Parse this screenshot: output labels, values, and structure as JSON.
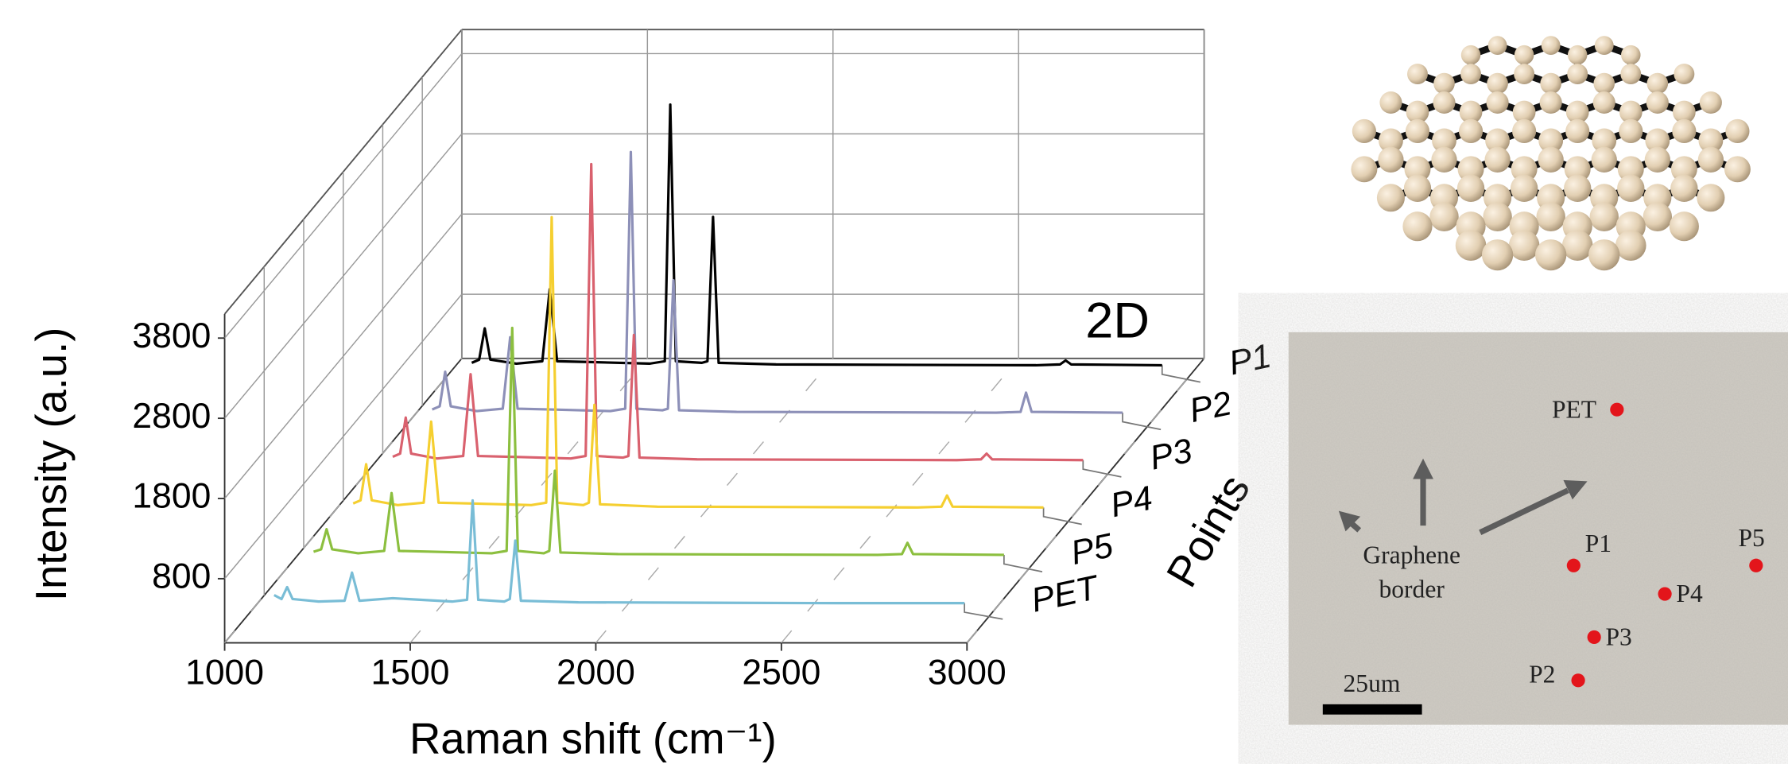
{
  "chart_data": {
    "type": "waterfall",
    "annotation": "2D",
    "x_label": "Raman shift (cm⁻¹)",
    "y_label": "Intensity (a.u.)",
    "z_label": "Points",
    "xlim": [
      1000,
      3000
    ],
    "xticks": [
      1000,
      1500,
      2000,
      2500,
      3000
    ],
    "ylim": [
      0,
      4100
    ],
    "yticks": [
      800,
      1800,
      2800,
      3800
    ],
    "grid": true,
    "x": [
      1080,
      1100,
      1115,
      1130,
      1200,
      1270,
      1290,
      1310,
      1400,
      1560,
      1600,
      1615,
      1630,
      1700,
      1715,
      1730,
      1745,
      1900,
      2600,
      2665,
      2680,
      2695,
      2940
    ],
    "series": [
      {
        "name": "PET",
        "color": "#79bdd6",
        "values": [
          300,
          250,
          400,
          250,
          220,
          230,
          580,
          230,
          260,
          220,
          240,
          1480,
          240,
          220,
          250,
          980,
          230,
          210,
          200,
          200,
          200,
          200,
          200
        ]
      },
      {
        "name": "P5",
        "color": "#8cbf3f",
        "values": [
          250,
          280,
          530,
          280,
          230,
          260,
          980,
          260,
          250,
          230,
          260,
          3040,
          260,
          230,
          260,
          1260,
          240,
          220,
          210,
          220,
          360,
          220,
          210
        ]
      },
      {
        "name": "P4",
        "color": "#f5cf30",
        "values": [
          260,
          300,
          750,
          300,
          240,
          270,
          1280,
          270,
          260,
          240,
          270,
          3830,
          270,
          240,
          270,
          1490,
          250,
          220,
          210,
          220,
          360,
          220,
          210
        ]
      },
      {
        "name": "P3",
        "color": "#d9616e",
        "values": [
          250,
          290,
          740,
          290,
          230,
          260,
          1280,
          260,
          250,
          230,
          260,
          3900,
          260,
          240,
          260,
          1770,
          240,
          220,
          210,
          220,
          290,
          220,
          210
        ]
      },
      {
        "name": "P2",
        "color": "#8d90b8",
        "values": [
          250,
          290,
          720,
          290,
          230,
          260,
          1150,
          260,
          250,
          230,
          260,
          3460,
          260,
          240,
          260,
          1860,
          240,
          220,
          210,
          220,
          460,
          220,
          210
        ]
      },
      {
        "name": "P1",
        "color": "#000000",
        "values": [
          240,
          280,
          670,
          280,
          230,
          260,
          1160,
          260,
          250,
          230,
          260,
          3460,
          260,
          240,
          260,
          2060,
          240,
          220,
          210,
          220,
          270,
          220,
          210
        ]
      }
    ]
  },
  "micrograph": {
    "points": [
      "PET",
      "P1",
      "P2",
      "P3",
      "P4",
      "P5"
    ],
    "border_label": [
      "Graphene",
      "border"
    ],
    "scale_bar": "25um"
  }
}
